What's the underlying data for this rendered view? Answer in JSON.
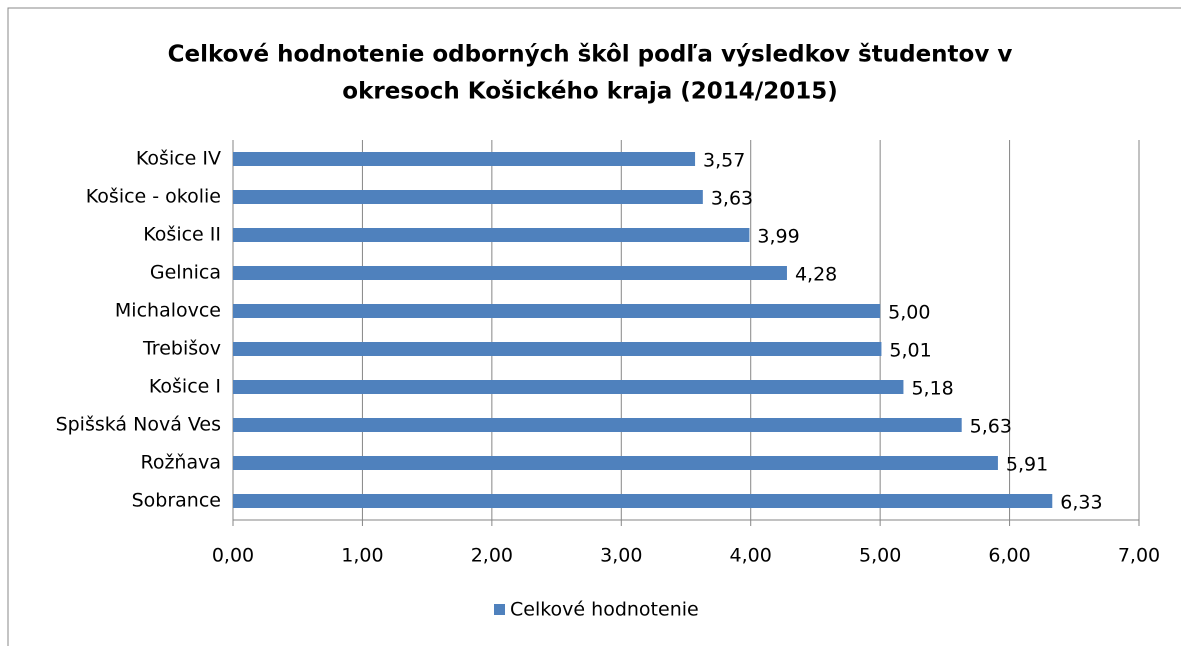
{
  "chart_data": {
    "type": "bar",
    "orientation": "horizontal",
    "title": [
      "Celkové hodnotenie odborných škôl podľa výsledkov študentov v",
      "okresoch Košického kraja (2014/2015)"
    ],
    "categories": [
      "Košice IV",
      "Košice - okolie",
      "Košice II",
      "Gelnica",
      "Michalovce",
      "Trebišov",
      "Košice I",
      "Spišská Nová Ves",
      "Rožňava",
      "Sobrance"
    ],
    "series": [
      {
        "name": "Celkové hodnotenie",
        "color": "#4f81bd",
        "values": [
          3.57,
          3.63,
          3.99,
          4.28,
          5.0,
          5.01,
          5.18,
          5.63,
          5.91,
          6.33
        ],
        "value_labels": [
          "3,57",
          "3,63",
          "3,99",
          "4,28",
          "5,00",
          "5,01",
          "5,18",
          "5,63",
          "5,91",
          "6,33"
        ]
      }
    ],
    "xlim": [
      0,
      7
    ],
    "xticks": [
      {
        "value": 0,
        "label": "0,00"
      },
      {
        "value": 1,
        "label": "1,00"
      },
      {
        "value": 2,
        "label": "2,00"
      },
      {
        "value": 3,
        "label": "3,00"
      },
      {
        "value": 4,
        "label": "4,00"
      },
      {
        "value": 5,
        "label": "5,00"
      },
      {
        "value": 6,
        "label": "6,00"
      },
      {
        "value": 7,
        "label": "7,00"
      }
    ],
    "grid": true,
    "legend": "bottom"
  }
}
